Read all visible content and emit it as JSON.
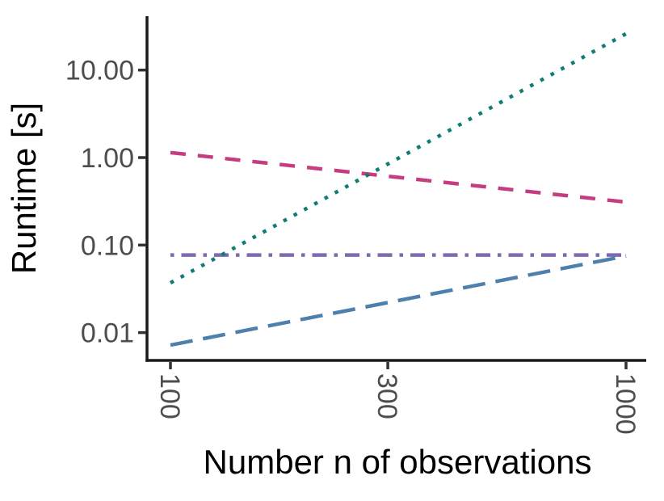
{
  "figure": {
    "background": "#FFFFFF",
    "title": ""
  },
  "chart_data": {
    "type": "line",
    "title": "",
    "xlabel": "Number n of observations",
    "ylabel": "Runtime [s]",
    "x_scale": "log10",
    "y_scale": "log10",
    "xlim": [
      89,
      1110
    ],
    "ylim": [
      0.005,
      41
    ],
    "grid": false,
    "legend": "none",
    "axis_line_color": "#1A1A1A",
    "tick_mark_color": "#333333",
    "tick_label_color": "#4D4D4D",
    "x_ticks": {
      "values": [
        100,
        300,
        1000
      ],
      "labels": [
        "100",
        "300",
        "1000"
      ],
      "label_rotation_deg": 90
    },
    "y_ticks": {
      "values": [
        10,
        1,
        0.1,
        0.01
      ],
      "labels": [
        "10.00",
        "1.00",
        "0.10",
        "0.01"
      ]
    },
    "series": [
      {
        "name": "dotdash-purple",
        "linestyle": "dotdash",
        "color": "#8169AE",
        "x": [
          100,
          1000
        ],
        "y": [
          0.077,
          0.077
        ]
      },
      {
        "name": "longdash-blue",
        "linestyle": "longdash",
        "color": "#4E80AE",
        "x": [
          100,
          1000
        ],
        "y": [
          0.0072,
          0.075
        ]
      },
      {
        "name": "dashed-pink",
        "linestyle": "dashed",
        "color": "#C53D80",
        "x": [
          100,
          1000
        ],
        "y": [
          1.14,
          0.31
        ]
      },
      {
        "name": "dotted-teal",
        "linestyle": "dotted",
        "color": "#0E7D73",
        "x": [
          100,
          1000
        ],
        "y": [
          0.037,
          26
        ]
      }
    ]
  }
}
